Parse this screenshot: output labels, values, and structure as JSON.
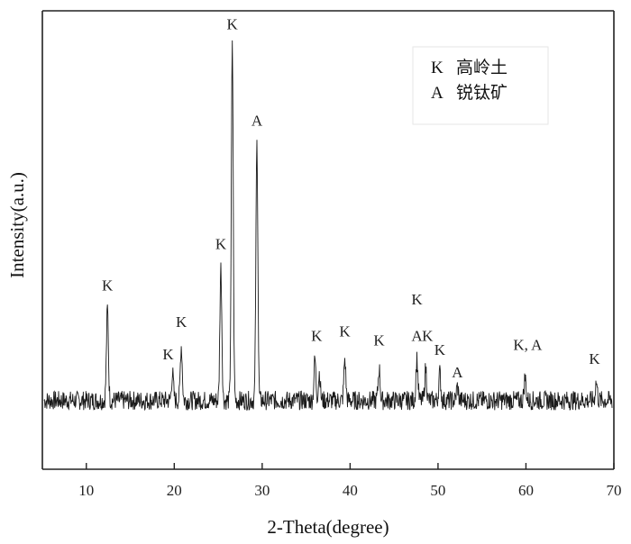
{
  "chart_data": {
    "type": "line",
    "xlabel": "2-Theta(degree)",
    "ylabel": "Intensity(a.u.)",
    "xlim": [
      5,
      70
    ],
    "ylim": [
      0,
      100
    ],
    "x_ticks": [
      10,
      20,
      30,
      40,
      50,
      60,
      70
    ],
    "y_ticks_shown": false,
    "grid": false,
    "legend_position": "top-right",
    "legend": [
      {
        "symbol": "K",
        "name": "高岭土"
      },
      {
        "symbol": "A",
        "name": "锐钛矿"
      }
    ],
    "baseline_intensity": 15,
    "peaks": [
      {
        "x": 12.4,
        "intensity": 35
      },
      {
        "x": 19.8,
        "intensity": 21
      },
      {
        "x": 20.8,
        "intensity": 27
      },
      {
        "x": 25.3,
        "intensity": 44
      },
      {
        "x": 26.6,
        "intensity": 92
      },
      {
        "x": 29.4,
        "intensity": 71
      },
      {
        "x": 36.0,
        "intensity": 24
      },
      {
        "x": 36.5,
        "intensity": 21
      },
      {
        "x": 39.4,
        "intensity": 24
      },
      {
        "x": 43.3,
        "intensity": 22
      },
      {
        "x": 47.6,
        "intensity": 24
      },
      {
        "x": 48.6,
        "intensity": 22
      },
      {
        "x": 50.2,
        "intensity": 21
      },
      {
        "x": 52.2,
        "intensity": 18
      },
      {
        "x": 59.9,
        "intensity": 20
      },
      {
        "x": 68.0,
        "intensity": 19
      }
    ],
    "annotations": [
      {
        "text": "K",
        "x": 12.4,
        "y": 39
      },
      {
        "text": "K",
        "x": 19.3,
        "y": 24
      },
      {
        "text": "K",
        "x": 20.8,
        "y": 31
      },
      {
        "text": "K",
        "x": 25.3,
        "y": 48
      },
      {
        "text": "K",
        "x": 26.6,
        "y": 96
      },
      {
        "text": "A",
        "x": 29.4,
        "y": 75
      },
      {
        "text": "K",
        "x": 36.2,
        "y": 28
      },
      {
        "text": "K",
        "x": 39.4,
        "y": 29
      },
      {
        "text": "K",
        "x": 43.3,
        "y": 27
      },
      {
        "text": "K",
        "x": 47.6,
        "y": 36
      },
      {
        "text": "A",
        "x": 47.6,
        "y": 28
      },
      {
        "text": "K",
        "x": 48.8,
        "y": 28
      },
      {
        "text": "K",
        "x": 50.2,
        "y": 25
      },
      {
        "text": "A",
        "x": 52.2,
        "y": 20
      },
      {
        "text": "K, A",
        "x": 60.2,
        "y": 26
      },
      {
        "text": "K",
        "x": 67.8,
        "y": 23
      }
    ]
  }
}
